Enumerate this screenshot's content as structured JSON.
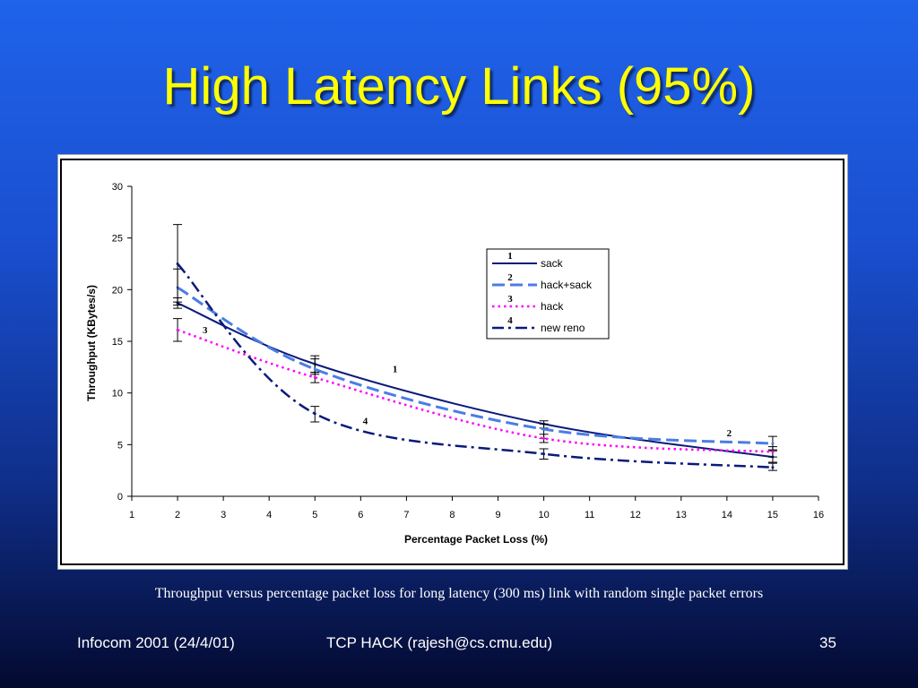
{
  "slide": {
    "title": "High Latency Links (95%)",
    "caption": "Throughput versus percentage packet loss for long latency (300 ms) link with random single packet errors",
    "footer_left": "Infocom 2001 (24/4/01)",
    "footer_center": "TCP HACK (rajesh@cs.cmu.edu)",
    "footer_right": "35",
    "title_color": "#ffff00",
    "background_color": "#1a4fd0"
  },
  "chart_data": {
    "type": "line",
    "xlabel": "Percentage Packet Loss (%)",
    "ylabel": "Throughput (KBytes/s)",
    "xlim": [
      1,
      16
    ],
    "ylim": [
      0,
      30
    ],
    "x_ticks": [
      1,
      2,
      3,
      4,
      5,
      6,
      7,
      8,
      9,
      10,
      11,
      12,
      13,
      14,
      15,
      16
    ],
    "y_ticks": [
      0,
      5,
      10,
      15,
      20,
      25,
      30
    ],
    "grid": false,
    "legend_position": "right",
    "series": [
      {
        "name": "sack",
        "number": "1",
        "color": "#0a1a7a",
        "dash": "solid",
        "x": [
          2,
          5,
          10,
          15
        ],
        "values": [
          18.7,
          12.8,
          7.0,
          3.8
        ],
        "error_bars": [
          [
            2,
            18.2,
            19.2
          ],
          [
            5,
            12.0,
            13.6
          ],
          [
            10,
            6.6,
            7.3
          ],
          [
            15,
            3.3,
            4.4
          ]
        ]
      },
      {
        "name": "hack+sack",
        "number": "2",
        "color": "#4a7de6",
        "dash": "longdash",
        "x": [
          2,
          5,
          10,
          15
        ],
        "values": [
          20.2,
          12.3,
          6.5,
          5.1
        ],
        "error_bars": [
          [
            2,
            18.5,
            22.0
          ],
          [
            5,
            11.8,
            13.3
          ],
          [
            10,
            5.6,
            7.0
          ],
          [
            15,
            4.5,
            5.8
          ]
        ]
      },
      {
        "name": "hack",
        "number": "3",
        "color": "#ff00ff",
        "dash": "dot",
        "x": [
          2,
          5,
          10,
          15
        ],
        "values": [
          16.1,
          11.5,
          5.6,
          4.3
        ],
        "error_bars": [
          [
            2,
            15.0,
            17.2
          ],
          [
            5,
            11.0,
            12.0
          ],
          [
            10,
            5.2,
            6.0
          ],
          [
            15,
            3.8,
            4.8
          ]
        ]
      },
      {
        "name": "new reno",
        "number": "4",
        "color": "#0a1a7a",
        "dash": "dashdot",
        "x": [
          2,
          5,
          10,
          15
        ],
        "values": [
          22.5,
          8.0,
          4.1,
          2.8
        ],
        "error_bars": [
          [
            2,
            18.8,
            26.3
          ],
          [
            5,
            7.2,
            8.7
          ],
          [
            10,
            3.6,
            4.6
          ],
          [
            15,
            2.5,
            3.2
          ]
        ]
      }
    ],
    "annotations": [
      {
        "text": "3",
        "x": 2.6,
        "y": 15.8
      },
      {
        "text": "1",
        "x": 6.75,
        "y": 12.0
      },
      {
        "text": "4",
        "x": 6.1,
        "y": 7.0
      },
      {
        "text": "2",
        "x": 14.05,
        "y": 5.8
      }
    ]
  }
}
